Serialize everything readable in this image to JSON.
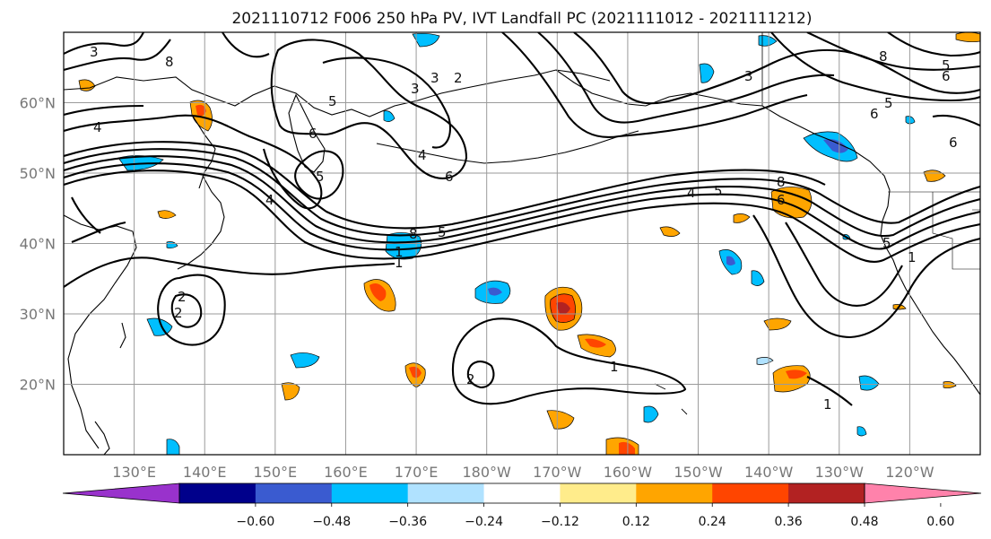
{
  "title": "2021110712 F006 250 hPa PV, IVT Landfall PC (2021111012 - 2021111212)",
  "map": {
    "lon_ticks": [
      "130°E",
      "140°E",
      "150°E",
      "160°E",
      "170°E",
      "180°W",
      "170°W",
      "160°W",
      "150°W",
      "140°W",
      "130°W",
      "120°W"
    ],
    "lat_ticks": [
      "60°N",
      "50°N",
      "40°N",
      "30°N",
      "20°N"
    ],
    "lon_range": [
      120,
      250
    ],
    "lat_range": [
      10,
      70
    ],
    "gridlines": true,
    "pv_contour_labels": [
      "3",
      "8",
      "4",
      "4",
      "5",
      "3",
      "6",
      "5",
      "2",
      "4",
      "5",
      "8",
      "2",
      "6",
      "1",
      "2",
      "3",
      "1",
      "4",
      "5",
      "8",
      "6",
      "6",
      "6",
      "5",
      "3",
      "1",
      "8",
      "5",
      "6",
      "5",
      "1",
      "2",
      "1"
    ]
  },
  "colorbar": {
    "ticks": [
      "−0.60",
      "−0.48",
      "−0.36",
      "−0.24",
      "−0.12",
      "0.12",
      "0.24",
      "0.36",
      "0.48",
      "0.60"
    ],
    "colors": [
      "#9932cc",
      "#00008b",
      "#3a5bd0",
      "#00bfff",
      "#b0e2ff",
      "#ffffff",
      "#ffec8b",
      "#ffa500",
      "#ff4500",
      "#b22222",
      "#ff82ab"
    ]
  }
}
